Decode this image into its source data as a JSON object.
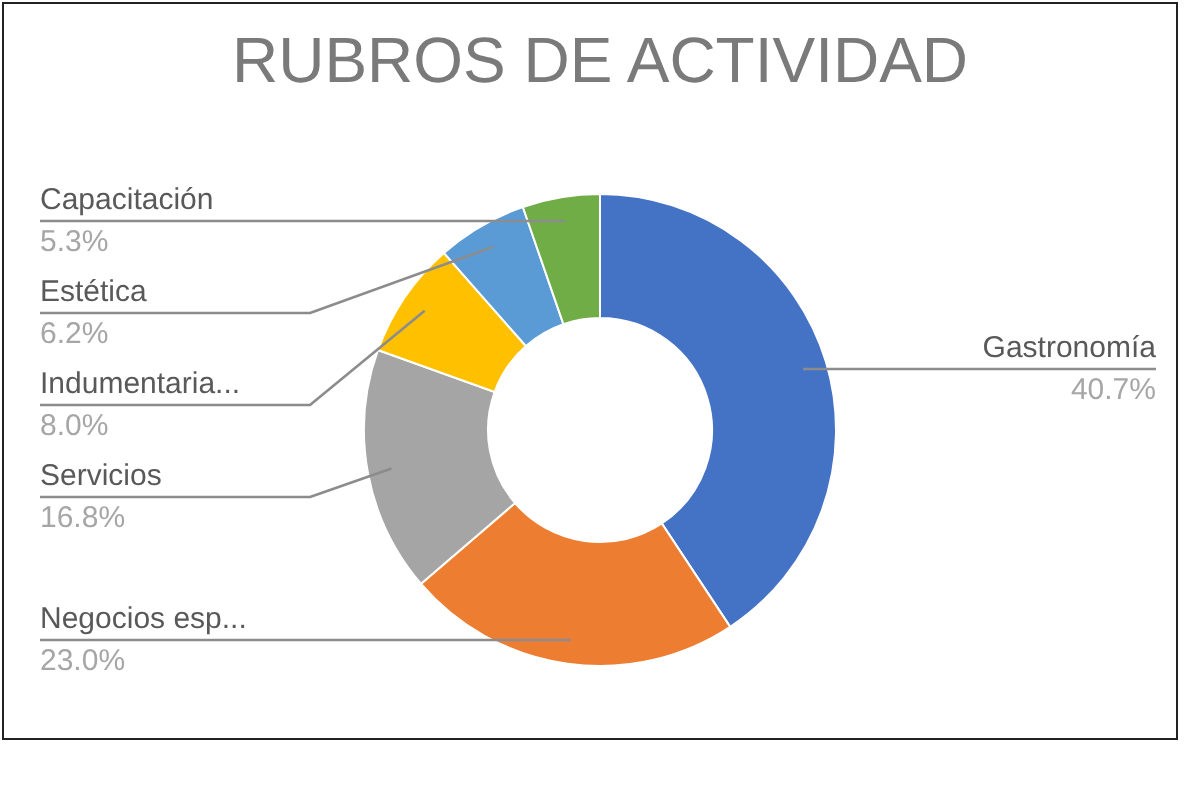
{
  "chart_data": {
    "type": "donut",
    "title": "RUBROS DE ACTIVIDAD",
    "categories": [
      "Gastronomía",
      "Negocios esp...",
      "Servicios",
      "Indumentaria...",
      "Estética",
      "Capacitación"
    ],
    "values": [
      40.7,
      23.0,
      16.8,
      8.0,
      6.2,
      5.3
    ],
    "value_labels": [
      "40.7%",
      "23.0%",
      "16.8%",
      "8.0%",
      "6.2%",
      "5.3%"
    ],
    "colors": [
      "#4472c4",
      "#ed7d31",
      "#a5a5a5",
      "#ffc000",
      "#5b9bd5",
      "#70ad47"
    ]
  }
}
